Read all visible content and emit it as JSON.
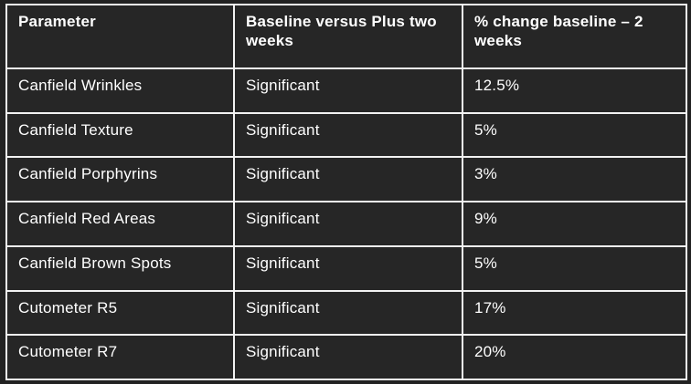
{
  "chart_data": {
    "type": "table",
    "title": "",
    "columns": [
      "Parameter",
      "Baseline versus Plus two weeks",
      "% change baseline – 2 weeks"
    ],
    "rows": [
      [
        "Canfield Wrinkles",
        "Significant",
        "12.5%"
      ],
      [
        "Canfield Texture",
        "Significant",
        "5%"
      ],
      [
        "Canfield Porphyrins",
        "Significant",
        "3%"
      ],
      [
        "Canfield Red Areas",
        "Significant",
        "9%"
      ],
      [
        "Canfield Brown Spots",
        "Significant",
        "5%"
      ],
      [
        "Cutometer R5",
        "Significant",
        "17%"
      ],
      [
        "Cutometer R7",
        "Significant",
        "20%"
      ]
    ],
    "layout": {
      "legend": "none",
      "grid": "full-borders",
      "header_style": "bold"
    }
  },
  "colors": {
    "background": "#222222",
    "cell_background": "#262626",
    "border": "#f2f2f2",
    "text": "#ffffff"
  }
}
